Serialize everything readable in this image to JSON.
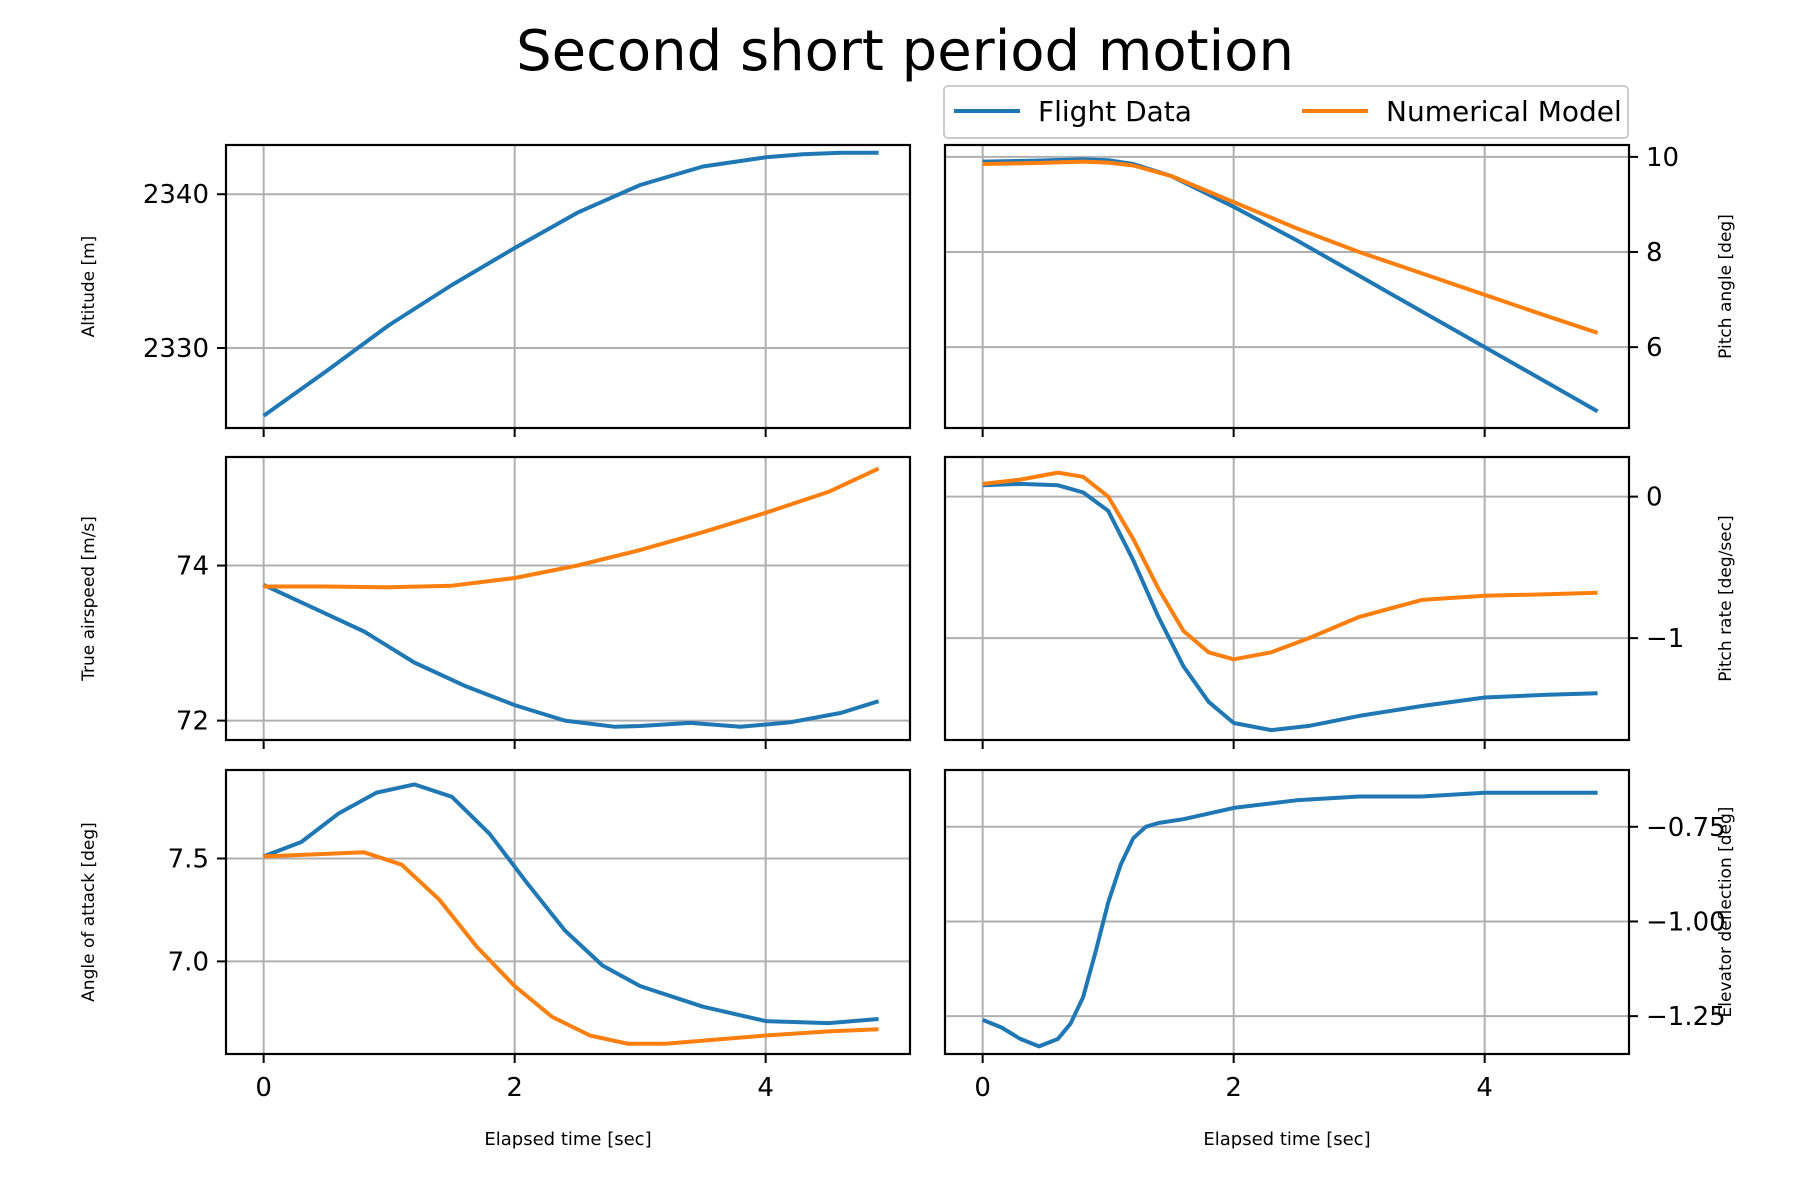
{
  "title": "Second short period motion",
  "legend": {
    "placement": "top-right",
    "entries": [
      "Flight Data",
      "Numerical Model"
    ]
  },
  "colors": {
    "flight": "#1f77b4",
    "model": "#ff7f0e",
    "grid": "#b0b0b0"
  },
  "chart_data": [
    {
      "type": "line",
      "panel": "top-left",
      "ylabel": "Altitude [m]",
      "xlabel": "",
      "xlim": [
        -0.3,
        5.15
      ],
      "ylim": [
        2324.8,
        2343.2
      ],
      "xticks": [
        0,
        2,
        4
      ],
      "xtick_labels": [],
      "yticks": [
        2330,
        2340
      ],
      "ytick_labels": [
        "2330",
        "2340"
      ],
      "grid": true,
      "series": [
        {
          "name": "Flight Data",
          "x": [
            0,
            0.5,
            1,
            1.5,
            2,
            2.5,
            3,
            3.5,
            4,
            4.3,
            4.6,
            4.9
          ],
          "y": [
            2325.6,
            2328.5,
            2331.5,
            2334.1,
            2336.5,
            2338.8,
            2340.6,
            2341.8,
            2342.4,
            2342.6,
            2342.7,
            2342.7
          ]
        }
      ]
    },
    {
      "type": "line",
      "panel": "top-right",
      "yaxis_side": "right",
      "ylabel": "Pitch angle [deg]",
      "xlabel": "",
      "xlim": [
        -0.3,
        5.15
      ],
      "ylim": [
        4.3,
        10.25
      ],
      "xticks": [
        0,
        2,
        4
      ],
      "xtick_labels": [],
      "yticks": [
        6,
        8,
        10
      ],
      "ytick_labels": [
        "6",
        "8",
        "10"
      ],
      "grid": true,
      "series": [
        {
          "name": "Flight Data",
          "x": [
            0,
            0.4,
            0.8,
            1.0,
            1.2,
            1.5,
            2,
            2.5,
            3,
            3.5,
            4,
            4.5,
            4.9
          ],
          "y": [
            9.9,
            9.92,
            9.95,
            9.93,
            9.85,
            9.6,
            8.95,
            8.25,
            7.5,
            6.75,
            6.0,
            5.25,
            4.65
          ]
        },
        {
          "name": "Numerical Model",
          "x": [
            0,
            0.4,
            0.8,
            1.0,
            1.2,
            1.5,
            2,
            2.5,
            3,
            3.5,
            4,
            4.5,
            4.9
          ],
          "y": [
            9.85,
            9.87,
            9.9,
            9.88,
            9.82,
            9.6,
            9.05,
            8.5,
            8.0,
            7.55,
            7.1,
            6.65,
            6.3
          ]
        }
      ]
    },
    {
      "type": "line",
      "panel": "middle-left",
      "ylabel": "True airspeed [m/s]",
      "xlabel": "",
      "xlim": [
        -0.3,
        5.15
      ],
      "ylim": [
        71.75,
        75.4
      ],
      "xticks": [
        0,
        2,
        4
      ],
      "xtick_labels": [],
      "yticks": [
        72,
        74
      ],
      "ytick_labels": [
        "72",
        "74"
      ],
      "grid": true,
      "series": [
        {
          "name": "Flight Data",
          "x": [
            0,
            0.4,
            0.8,
            1.2,
            1.6,
            2,
            2.4,
            2.8,
            3.0,
            3.4,
            3.8,
            4.2,
            4.6,
            4.9
          ],
          "y": [
            73.75,
            73.45,
            73.15,
            72.75,
            72.45,
            72.2,
            72.0,
            71.92,
            71.93,
            71.97,
            71.92,
            71.98,
            72.1,
            72.25
          ]
        },
        {
          "name": "Numerical Model",
          "x": [
            0,
            0.5,
            1,
            1.5,
            2,
            2.5,
            3,
            3.5,
            4,
            4.5,
            4.9
          ],
          "y": [
            73.73,
            73.73,
            73.72,
            73.74,
            73.84,
            74.0,
            74.2,
            74.43,
            74.68,
            74.95,
            75.25
          ]
        }
      ]
    },
    {
      "type": "line",
      "panel": "middle-right",
      "yaxis_side": "right",
      "ylabel": "Pitch rate [deg/sec]",
      "xlabel": "",
      "xlim": [
        -0.3,
        5.15
      ],
      "ylim": [
        -1.72,
        0.28
      ],
      "xticks": [
        0,
        2,
        4
      ],
      "xtick_labels": [],
      "yticks": [
        -1,
        0
      ],
      "ytick_labels": [
        "−1",
        "0"
      ],
      "grid": true,
      "series": [
        {
          "name": "Flight Data",
          "x": [
            0,
            0.3,
            0.6,
            0.8,
            1.0,
            1.2,
            1.4,
            1.6,
            1.8,
            2.0,
            2.3,
            2.6,
            3,
            3.5,
            4,
            4.5,
            4.9
          ],
          "y": [
            0.08,
            0.09,
            0.08,
            0.03,
            -0.1,
            -0.45,
            -0.85,
            -1.2,
            -1.45,
            -1.6,
            -1.65,
            -1.62,
            -1.55,
            -1.48,
            -1.42,
            -1.4,
            -1.39
          ]
        },
        {
          "name": "Numerical Model",
          "x": [
            0,
            0.3,
            0.6,
            0.8,
            1.0,
            1.2,
            1.4,
            1.6,
            1.8,
            2.0,
            2.3,
            2.6,
            3,
            3.5,
            4,
            4.5,
            4.9
          ],
          "y": [
            0.09,
            0.12,
            0.17,
            0.14,
            0.0,
            -0.3,
            -0.65,
            -0.95,
            -1.1,
            -1.15,
            -1.1,
            -1.0,
            -0.85,
            -0.73,
            -0.7,
            -0.69,
            -0.68
          ]
        }
      ]
    },
    {
      "type": "line",
      "panel": "bottom-left",
      "ylabel": "Angle of attack [deg]",
      "xlabel": "Elapsed time [sec]",
      "xlim": [
        -0.3,
        5.15
      ],
      "ylim": [
        6.55,
        7.93
      ],
      "xticks": [
        0,
        2,
        4
      ],
      "xtick_labels": [
        "0",
        "2",
        "4"
      ],
      "yticks": [
        7.0,
        7.5
      ],
      "ytick_labels": [
        "7.0",
        "7.5"
      ],
      "grid": true,
      "series": [
        {
          "name": "Flight Data",
          "x": [
            0,
            0.3,
            0.6,
            0.9,
            1.2,
            1.5,
            1.8,
            2.1,
            2.4,
            2.7,
            3,
            3.5,
            4,
            4.5,
            4.9
          ],
          "y": [
            7.51,
            7.58,
            7.72,
            7.82,
            7.86,
            7.8,
            7.62,
            7.38,
            7.15,
            6.98,
            6.88,
            6.78,
            6.71,
            6.7,
            6.72
          ]
        },
        {
          "name": "Numerical Model",
          "x": [
            0,
            0.4,
            0.8,
            1.1,
            1.4,
            1.7,
            2,
            2.3,
            2.6,
            2.9,
            3.2,
            3.6,
            4,
            4.5,
            4.9
          ],
          "y": [
            7.51,
            7.52,
            7.53,
            7.47,
            7.3,
            7.07,
            6.88,
            6.73,
            6.64,
            6.6,
            6.6,
            6.62,
            6.64,
            6.66,
            6.67
          ]
        }
      ]
    },
    {
      "type": "line",
      "panel": "bottom-right",
      "yaxis_side": "right",
      "ylabel": "Elevator deflection [deg]",
      "xlabel": "Elapsed time [sec]",
      "xlim": [
        -0.3,
        5.15
      ],
      "ylim": [
        -1.35,
        -0.6
      ],
      "xticks": [
        0,
        2,
        4
      ],
      "xtick_labels": [
        "0",
        "2",
        "4"
      ],
      "yticks": [
        -1.25,
        -1.0,
        -0.75
      ],
      "ytick_labels": [
        "−1.25",
        "−1.00",
        "−0.75"
      ],
      "grid": true,
      "series": [
        {
          "name": "Flight Data",
          "x": [
            0,
            0.15,
            0.3,
            0.45,
            0.6,
            0.7,
            0.8,
            0.9,
            1.0,
            1.1,
            1.2,
            1.3,
            1.4,
            1.6,
            2,
            2.5,
            3,
            3.5,
            4,
            4.5,
            4.9
          ],
          "y": [
            -1.26,
            -1.28,
            -1.31,
            -1.33,
            -1.31,
            -1.27,
            -1.2,
            -1.08,
            -0.95,
            -0.85,
            -0.78,
            -0.75,
            -0.74,
            -0.73,
            -0.7,
            -0.68,
            -0.67,
            -0.67,
            -0.66,
            -0.66,
            -0.66
          ]
        }
      ]
    }
  ]
}
